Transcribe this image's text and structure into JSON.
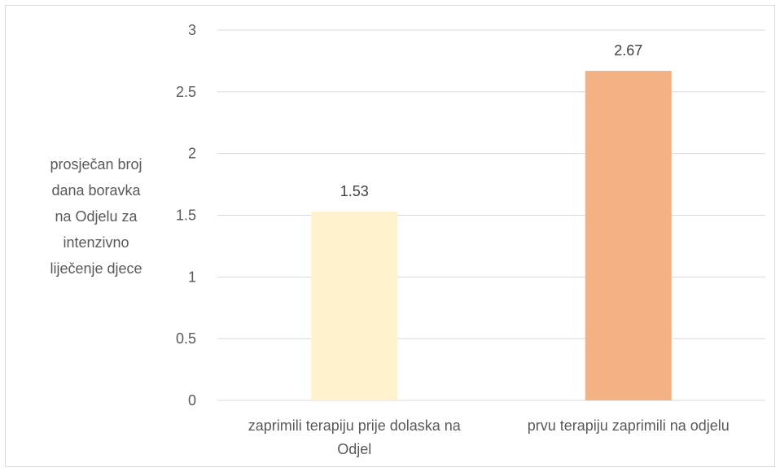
{
  "chart_data": {
    "type": "bar",
    "title": "",
    "ylabel_lines": [
      "prosječan broj",
      "dana boravka",
      "na Odjelu za",
      "intenzivno",
      "liječenje djece"
    ],
    "xlabel": "",
    "ylim": [
      0,
      3
    ],
    "yticks": [
      0,
      0.5,
      1,
      1.5,
      2,
      2.5,
      3
    ],
    "ytick_labels": [
      "0",
      "0.5",
      "1",
      "1.5",
      "2",
      "2.5",
      "3"
    ],
    "categories": [
      [
        "zaprimili terapiju prije dolaska na",
        "Odjel"
      ],
      [
        "prvu terapiju zaprimili na odjelu"
      ]
    ],
    "values": [
      1.53,
      2.67
    ],
    "value_labels": [
      "1.53",
      "2.67"
    ],
    "bar_colors": [
      "#FFF2CC",
      "#F4B183"
    ],
    "grid": true,
    "legend": "none"
  }
}
